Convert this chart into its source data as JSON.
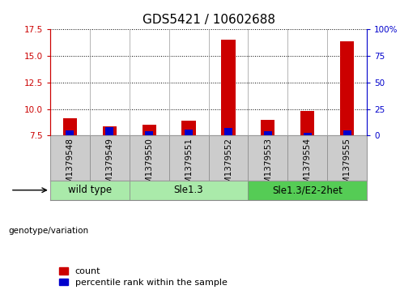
{
  "title": "GDS5421 / 10602688",
  "samples": [
    "GSM1379548",
    "GSM1379549",
    "GSM1379550",
    "GSM1379551",
    "GSM1379552",
    "GSM1379553",
    "GSM1379554",
    "GSM1379555"
  ],
  "counts": [
    9.1,
    8.4,
    8.55,
    8.9,
    16.5,
    9.0,
    9.8,
    16.4
  ],
  "percentile_ranks": [
    5,
    8,
    4,
    6,
    7,
    4,
    3,
    5
  ],
  "baseline": 7.5,
  "ylim_left": [
    7.5,
    17.5
  ],
  "yticks_left": [
    7.5,
    10.0,
    12.5,
    15.0,
    17.5
  ],
  "ylim_right": [
    0,
    100
  ],
  "yticks_right": [
    0,
    25,
    50,
    75,
    100
  ],
  "groups": [
    {
      "label": "wild type",
      "start": 0,
      "end": 2,
      "color": "#aaeaaa"
    },
    {
      "label": "Sle1.3",
      "start": 2,
      "end": 5,
      "color": "#aaeaaa"
    },
    {
      "label": "Sle1.3/E2-2het",
      "start": 5,
      "end": 8,
      "color": "#55cc55"
    }
  ],
  "bar_color_red": "#cc0000",
  "bar_color_blue": "#0000cc",
  "bar_width": 0.35,
  "percentile_bar_width": 0.2,
  "grid_color": "black",
  "legend_count_label": "count",
  "legend_percentile_label": "percentile rank within the sample",
  "genotype_label": "genotype/variation",
  "left_tick_color": "#cc0000",
  "right_tick_color": "#0000cc",
  "sample_box_color": "#cccccc",
  "title_fontsize": 11,
  "tick_fontsize": 7.5,
  "legend_fontsize": 8,
  "group_fontsize": 8.5
}
